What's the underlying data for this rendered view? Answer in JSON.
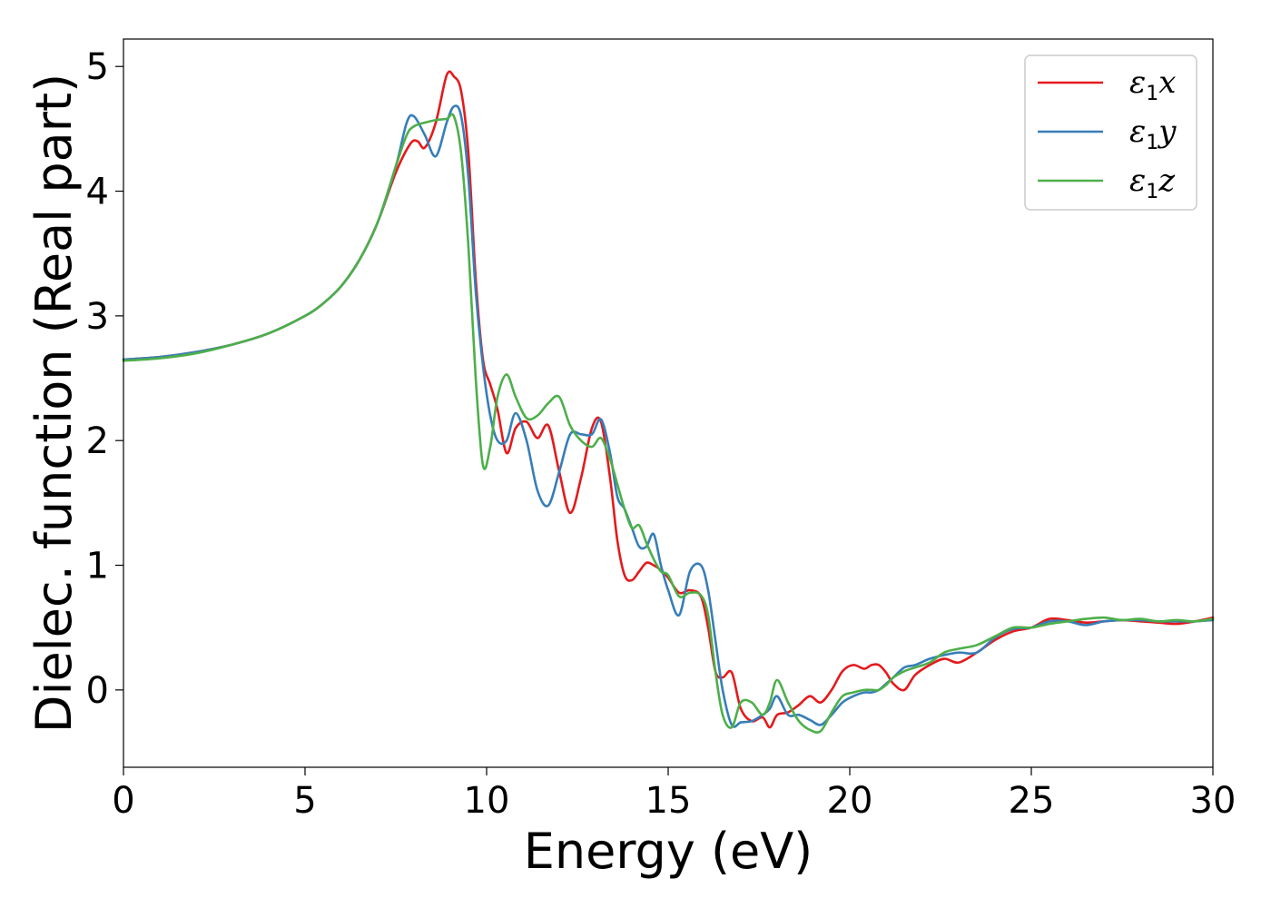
{
  "chart_data": {
    "type": "line",
    "xlabel": "Energy (eV)",
    "ylabel": "Dielec. function (Real part)",
    "xlim": [
      0,
      30
    ],
    "ylim": [
      -0.62,
      5.22
    ],
    "xticks": [
      0,
      5,
      10,
      15,
      20,
      25,
      30
    ],
    "yticks": [
      0,
      1,
      2,
      3,
      4,
      5
    ],
    "xtick_labels": [
      "0",
      "5",
      "10",
      "15",
      "20",
      "25",
      "30"
    ],
    "ytick_labels": [
      "0",
      "1",
      "2",
      "3",
      "4",
      "5"
    ],
    "grid": false,
    "legend_position": "top-right",
    "series": [
      {
        "name_main": "ε",
        "name_sub": "1",
        "name_tail": "x",
        "color": "#e41a1c",
        "x": [
          0,
          1,
          2,
          3,
          4,
          5,
          5.5,
          6,
          6.5,
          7,
          7.5,
          7.9,
          8.1,
          8.3,
          8.6,
          8.9,
          9.1,
          9.3,
          9.5,
          9.7,
          9.9,
          10.1,
          10.3,
          10.55,
          10.8,
          11.1,
          11.4,
          11.7,
          12.0,
          12.3,
          12.6,
          12.9,
          13.15,
          13.4,
          13.6,
          13.8,
          14.0,
          14.2,
          14.4,
          14.6,
          14.8,
          15.0,
          15.3,
          15.6,
          15.9,
          16.1,
          16.3,
          16.5,
          16.75,
          17.0,
          17.3,
          17.6,
          17.8,
          18.0,
          18.3,
          18.6,
          18.9,
          19.2,
          19.5,
          19.8,
          20.1,
          20.4,
          20.6,
          20.8,
          21.0,
          21.2,
          21.5,
          21.8,
          22.2,
          22.6,
          23.0,
          23.5,
          24.0,
          24.5,
          25.0,
          25.5,
          26.0,
          26.5,
          27.0,
          27.5,
          28.0,
          28.5,
          29.0,
          29.5,
          30.0
        ],
        "y": [
          2.65,
          2.67,
          2.71,
          2.77,
          2.86,
          3.0,
          3.1,
          3.24,
          3.45,
          3.75,
          4.15,
          4.38,
          4.4,
          4.35,
          4.55,
          4.93,
          4.92,
          4.8,
          4.3,
          3.3,
          2.65,
          2.45,
          2.25,
          1.9,
          2.1,
          2.15,
          2.02,
          2.12,
          1.75,
          1.42,
          1.7,
          2.1,
          2.15,
          1.7,
          1.2,
          0.92,
          0.88,
          0.95,
          1.02,
          1.0,
          0.96,
          0.9,
          0.78,
          0.8,
          0.75,
          0.5,
          0.15,
          0.1,
          0.14,
          -0.15,
          -0.25,
          -0.22,
          -0.3,
          -0.2,
          -0.18,
          -0.12,
          -0.05,
          -0.1,
          0.0,
          0.15,
          0.2,
          0.17,
          0.2,
          0.2,
          0.14,
          0.05,
          0.0,
          0.12,
          0.2,
          0.25,
          0.22,
          0.3,
          0.4,
          0.47,
          0.5,
          0.57,
          0.56,
          0.54,
          0.55,
          0.56,
          0.55,
          0.54,
          0.53,
          0.55,
          0.58
        ]
      },
      {
        "name_main": "ε",
        "name_sub": "1",
        "name_tail": "y",
        "color": "#377eb8",
        "x": [
          0,
          1,
          2,
          3,
          4,
          5,
          5.5,
          6,
          6.5,
          7,
          7.5,
          7.8,
          8.0,
          8.3,
          8.6,
          8.9,
          9.1,
          9.3,
          9.5,
          9.7,
          9.9,
          10.1,
          10.3,
          10.55,
          10.8,
          11.1,
          11.4,
          11.7,
          12.0,
          12.3,
          12.6,
          12.9,
          13.15,
          13.4,
          13.6,
          13.8,
          14.0,
          14.2,
          14.4,
          14.6,
          14.8,
          15.0,
          15.3,
          15.6,
          15.9,
          16.1,
          16.3,
          16.5,
          16.75,
          17.0,
          17.3,
          17.6,
          17.8,
          18.0,
          18.3,
          18.6,
          18.9,
          19.2,
          19.5,
          19.8,
          20.1,
          20.4,
          20.6,
          20.8,
          21.0,
          21.2,
          21.5,
          21.8,
          22.2,
          22.6,
          23.0,
          23.5,
          24.0,
          24.5,
          25.0,
          25.5,
          26.0,
          26.5,
          27.0,
          27.5,
          28.0,
          28.5,
          29.0,
          29.5,
          30.0
        ],
        "y": [
          2.65,
          2.67,
          2.71,
          2.77,
          2.86,
          3.0,
          3.1,
          3.24,
          3.45,
          3.75,
          4.2,
          4.55,
          4.6,
          4.45,
          4.28,
          4.55,
          4.68,
          4.6,
          4.1,
          3.2,
          2.6,
          2.2,
          2.0,
          2.0,
          2.22,
          2.0,
          1.6,
          1.48,
          1.75,
          2.05,
          2.05,
          2.05,
          2.17,
          1.9,
          1.55,
          1.45,
          1.3,
          1.15,
          1.15,
          1.25,
          1.0,
          0.8,
          0.6,
          0.95,
          1.0,
          0.8,
          0.4,
          0.0,
          -0.28,
          -0.26,
          -0.25,
          -0.2,
          -0.15,
          -0.05,
          -0.2,
          -0.2,
          -0.24,
          -0.28,
          -0.2,
          -0.1,
          -0.05,
          -0.02,
          -0.02,
          0.0,
          0.05,
          0.1,
          0.18,
          0.2,
          0.25,
          0.28,
          0.3,
          0.3,
          0.42,
          0.49,
          0.5,
          0.55,
          0.55,
          0.52,
          0.55,
          0.56,
          0.56,
          0.55,
          0.55,
          0.55,
          0.56
        ]
      },
      {
        "name_main": "ε",
        "name_sub": "1",
        "name_tail": "z",
        "color": "#4daf4a",
        "x": [
          0,
          1,
          2,
          3,
          4,
          5,
          5.5,
          6,
          6.5,
          7,
          7.5,
          7.8,
          8.0,
          8.3,
          8.6,
          8.9,
          9.1,
          9.3,
          9.5,
          9.7,
          9.9,
          10.1,
          10.3,
          10.55,
          10.8,
          11.1,
          11.4,
          11.7,
          12.0,
          12.3,
          12.6,
          12.9,
          13.15,
          13.4,
          13.6,
          13.8,
          14.0,
          14.2,
          14.4,
          14.6,
          14.8,
          15.0,
          15.3,
          15.6,
          15.9,
          16.1,
          16.3,
          16.5,
          16.75,
          17.0,
          17.3,
          17.6,
          17.8,
          18.0,
          18.3,
          18.6,
          18.9,
          19.2,
          19.5,
          19.8,
          20.1,
          20.4,
          20.6,
          20.8,
          21.0,
          21.2,
          21.5,
          21.8,
          22.2,
          22.6,
          23.0,
          23.5,
          24.0,
          24.5,
          25.0,
          25.5,
          26.0,
          26.5,
          27.0,
          27.5,
          28.0,
          28.5,
          29.0,
          29.5,
          30.0
        ],
        "y": [
          2.64,
          2.66,
          2.7,
          2.77,
          2.86,
          3.0,
          3.1,
          3.24,
          3.45,
          3.75,
          4.2,
          4.45,
          4.52,
          4.55,
          4.57,
          4.58,
          4.6,
          4.3,
          3.55,
          2.5,
          1.8,
          1.95,
          2.35,
          2.53,
          2.35,
          2.18,
          2.2,
          2.3,
          2.35,
          2.12,
          2.0,
          1.95,
          2.02,
          1.85,
          1.65,
          1.45,
          1.3,
          1.32,
          1.18,
          1.05,
          0.95,
          0.92,
          0.75,
          0.78,
          0.76,
          0.6,
          0.15,
          -0.2,
          -0.3,
          -0.1,
          -0.1,
          -0.2,
          -0.1,
          0.08,
          -0.1,
          -0.25,
          -0.32,
          -0.33,
          -0.18,
          -0.05,
          -0.02,
          0.0,
          0.0,
          0.0,
          0.04,
          0.1,
          0.15,
          0.18,
          0.22,
          0.3,
          0.33,
          0.36,
          0.43,
          0.5,
          0.5,
          0.53,
          0.55,
          0.57,
          0.58,
          0.56,
          0.57,
          0.55,
          0.56,
          0.55,
          0.57
        ]
      }
    ]
  }
}
